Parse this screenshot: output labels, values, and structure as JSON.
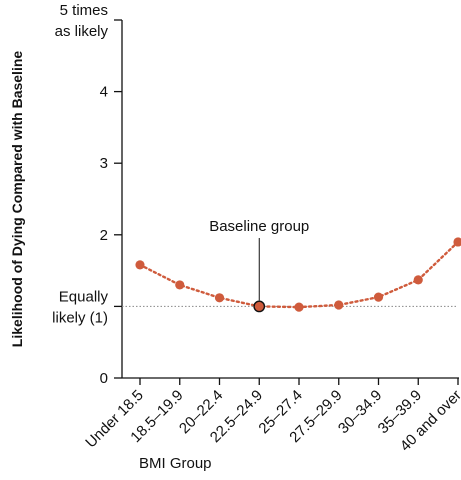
{
  "chart_data": {
    "type": "line",
    "title": "",
    "xlabel": "BMI Group",
    "ylabel": "Likelihood of Dying Compared with Baseline",
    "categories": [
      "Under 18.5",
      "18.5–19.9",
      "20–22.4",
      "22.5–24.9",
      "25–27.4",
      "27.5–29.9",
      "30–34.9",
      "35–39.9",
      "40 and over"
    ],
    "series": [
      {
        "values": [
          1.58,
          1.3,
          1.12,
          1.0,
          0.99,
          1.02,
          1.13,
          1.37,
          1.9
        ]
      }
    ],
    "ylim": [
      0,
      5
    ],
    "yticks": [
      {
        "value": 0,
        "label": "0"
      },
      {
        "value": 1,
        "label": "Equally likely (1)"
      },
      {
        "value": 2,
        "label": "2"
      },
      {
        "value": 3,
        "label": "3"
      },
      {
        "value": 4,
        "label": "4"
      },
      {
        "value": 5,
        "label": "5 times as likely"
      }
    ],
    "reference_line": {
      "value": 1,
      "style": "dotted"
    },
    "highlight": {
      "category": "22.5–24.9",
      "label": "Baseline group"
    },
    "grid": false,
    "legend": "none",
    "colors": {
      "series": "#cf5b3c",
      "axis": "#111111",
      "reference": "#888888",
      "highlight_fill": "#cf5b3c",
      "highlight_stroke": "#111111"
    }
  }
}
